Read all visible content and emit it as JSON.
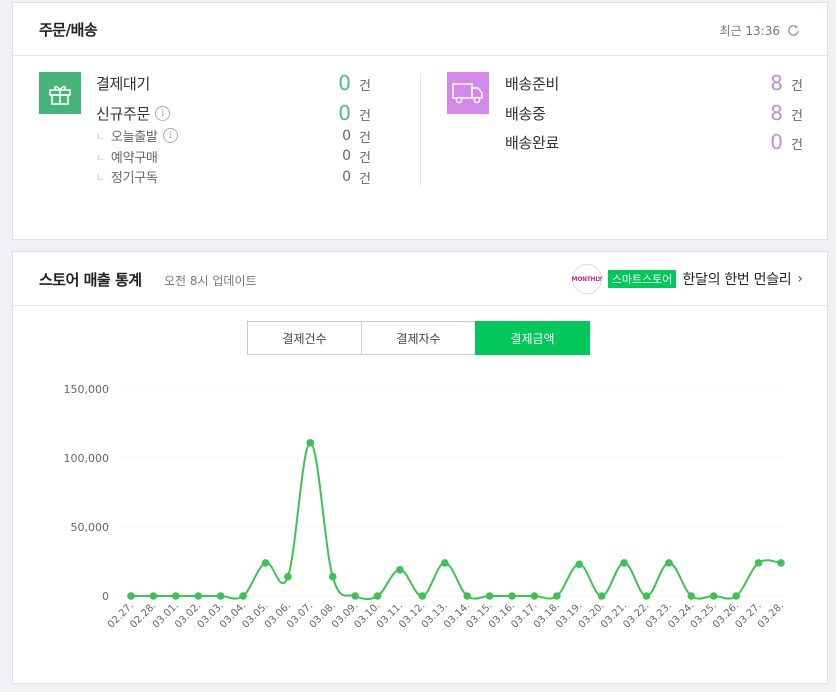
{
  "orders": {
    "title": "주문/배송",
    "updated_time": "최근 13:36",
    "payment_waiting": {
      "label": "결제대기",
      "count": "0",
      "unit": "건"
    },
    "new_order": {
      "label": "신규주문",
      "count": "0",
      "unit": "건"
    },
    "sub_items": [
      {
        "label": "오늘출발",
        "count": "0",
        "unit": "건"
      },
      {
        "label": "예약구매",
        "count": "0",
        "unit": "건"
      },
      {
        "label": "정기구독",
        "count": "0",
        "unit": "건"
      }
    ],
    "shipping": [
      {
        "label": "배송준비",
        "count": "8",
        "unit": "건"
      },
      {
        "label": "배송중",
        "count": "8",
        "unit": "건"
      },
      {
        "label": "배송완료",
        "count": "0",
        "unit": "건"
      }
    ],
    "icons": {
      "left": "gift-icon",
      "right": "truck-icon"
    },
    "colors": {
      "green": "#46b478",
      "purple": "#d28ae6"
    }
  },
  "stats": {
    "title": "스토어 매출 통계",
    "update_note": "오전 8시 업데이트",
    "promo": {
      "logo_text": "MONTHLY",
      "badge": "스마트스토어",
      "text": "한달의 한번 먼슬리"
    },
    "tabs": [
      {
        "label": "결제건수",
        "active": false
      },
      {
        "label": "결제자수",
        "active": false
      },
      {
        "label": "결제금액",
        "active": true
      }
    ],
    "accent": "#03c75a"
  },
  "chart_data": {
    "type": "line",
    "title": "",
    "xlabel": "",
    "ylabel": "",
    "ylim": [
      0,
      150000
    ],
    "yticks": [
      "0",
      "50,000",
      "100,000",
      "150,000"
    ],
    "ytick_values": [
      0,
      50000,
      100000,
      150000
    ],
    "grid": true,
    "categories": [
      "02.27.",
      "02.28.",
      "03.01.",
      "03.02.",
      "03.03.",
      "03.04.",
      "03.05.",
      "03.06.",
      "03.07.",
      "03.08.",
      "03.09.",
      "03.10.",
      "03.11.",
      "03.12.",
      "03.13.",
      "03.14.",
      "03.15.",
      "03.16.",
      "03.17.",
      "03.18.",
      "03.19.",
      "03.20.",
      "03.21.",
      "03.22.",
      "03.23.",
      "03.24.",
      "03.25.",
      "03.26.",
      "03.27.",
      "03.28."
    ],
    "series": [
      {
        "values": [
          0,
          0,
          0,
          0,
          0,
          0,
          24000,
          14000,
          111000,
          14000,
          0,
          0,
          19000,
          0,
          24000,
          0,
          0,
          0,
          0,
          0,
          23000,
          0,
          24000,
          0,
          24000,
          0,
          0,
          0,
          24000,
          24000
        ],
        "color": "#3fc254"
      }
    ]
  }
}
